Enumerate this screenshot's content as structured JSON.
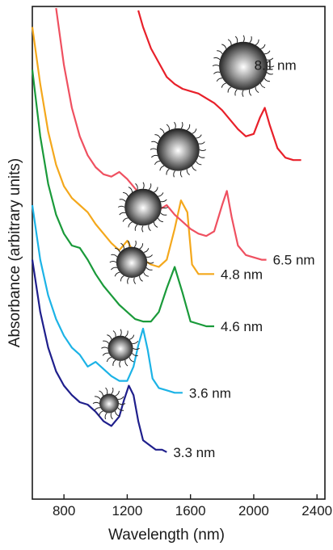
{
  "chart_data": {
    "type": "line",
    "title": "",
    "xlabel": "Wavelength (nm)",
    "ylabel": "Absorbance (arbitrary units)",
    "xlim": [
      600,
      2450
    ],
    "ylim": [
      0,
      1
    ],
    "xticks": [
      800,
      1200,
      1600,
      2000,
      2400
    ],
    "xtick_labels": [
      "800",
      "1200",
      "1600",
      "2000",
      "2400"
    ],
    "yticks_shown": false,
    "grid": false,
    "legend": "none",
    "annotations": "nanoparticle sphere sketches beside each curve; size labels at right end of curves",
    "series": [
      {
        "name": "3.3 nm",
        "color": "#1f1f8c",
        "x": [
          600,
          650,
          700,
          750,
          800,
          850,
          900,
          950,
          1000,
          1050,
          1100,
          1150,
          1180,
          1210,
          1240,
          1270,
          1300,
          1340,
          1380,
          1420,
          1450
        ],
        "y": [
          0.47,
          0.36,
          0.285,
          0.235,
          0.205,
          0.185,
          0.17,
          0.165,
          0.15,
          0.13,
          0.12,
          0.14,
          0.175,
          0.205,
          0.185,
          0.13,
          0.09,
          0.08,
          0.07,
          0.07,
          0.065
        ]
      },
      {
        "name": "3.6 nm",
        "color": "#1cb3e6",
        "x": [
          600,
          650,
          700,
          750,
          800,
          850,
          900,
          950,
          1000,
          1050,
          1100,
          1150,
          1200,
          1240,
          1270,
          1300,
          1330,
          1360,
          1400,
          1450,
          1500,
          1550
        ],
        "y": [
          0.585,
          0.47,
          0.395,
          0.345,
          0.31,
          0.285,
          0.27,
          0.245,
          0.255,
          0.24,
          0.225,
          0.215,
          0.215,
          0.245,
          0.29,
          0.325,
          0.28,
          0.22,
          0.2,
          0.195,
          0.19,
          0.19
        ]
      },
      {
        "name": "4.6 nm",
        "color": "#1a9a3a",
        "x": [
          600,
          650,
          700,
          750,
          800,
          850,
          900,
          950,
          1000,
          1050,
          1100,
          1150,
          1200,
          1250,
          1300,
          1350,
          1400,
          1450,
          1500,
          1550,
          1600,
          1650,
          1700,
          1750
        ],
        "y": [
          0.87,
          0.73,
          0.63,
          0.565,
          0.525,
          0.5,
          0.495,
          0.47,
          0.44,
          0.415,
          0.395,
          0.375,
          0.36,
          0.345,
          0.34,
          0.34,
          0.36,
          0.41,
          0.455,
          0.4,
          0.34,
          0.335,
          0.33,
          0.33
        ]
      },
      {
        "name": "4.8 nm",
        "color": "#f4a81c",
        "x": [
          600,
          650,
          700,
          750,
          800,
          850,
          900,
          950,
          1000,
          1050,
          1100,
          1150,
          1200,
          1250,
          1300,
          1350,
          1400,
          1450,
          1500,
          1540,
          1580,
          1610,
          1650,
          1700,
          1750
        ],
        "y": [
          0.96,
          0.84,
          0.74,
          0.67,
          0.625,
          0.6,
          0.585,
          0.57,
          0.545,
          0.525,
          0.505,
          0.49,
          0.51,
          0.48,
          0.47,
          0.46,
          0.455,
          0.47,
          0.535,
          0.595,
          0.57,
          0.46,
          0.44,
          0.44,
          0.44
        ]
      },
      {
        "name": "6.5 nm",
        "color": "#ef5060",
        "x": [
          750,
          800,
          850,
          900,
          950,
          1000,
          1050,
          1100,
          1150,
          1200,
          1250,
          1300,
          1350,
          1400,
          1450,
          1500,
          1550,
          1600,
          1650,
          1700,
          1750,
          1800,
          1830,
          1860,
          1900,
          1950,
          2000,
          2050,
          2080
        ],
        "y": [
          1.0,
          0.88,
          0.79,
          0.73,
          0.69,
          0.665,
          0.65,
          0.645,
          0.655,
          0.64,
          0.62,
          0.6,
          0.58,
          0.575,
          0.585,
          0.565,
          0.55,
          0.535,
          0.525,
          0.52,
          0.53,
          0.585,
          0.615,
          0.56,
          0.5,
          0.48,
          0.475,
          0.47,
          0.47
        ]
      },
      {
        "name": "8.1 nm",
        "color": "#e8202a",
        "x": [
          1270,
          1300,
          1350,
          1400,
          1450,
          1500,
          1550,
          1600,
          1650,
          1700,
          1750,
          1800,
          1850,
          1900,
          1950,
          2000,
          2040,
          2070,
          2100,
          2150,
          2200,
          2250,
          2300
        ],
        "y": [
          0.995,
          0.96,
          0.915,
          0.885,
          0.855,
          0.84,
          0.83,
          0.825,
          0.82,
          0.81,
          0.8,
          0.785,
          0.765,
          0.745,
          0.73,
          0.735,
          0.77,
          0.79,
          0.755,
          0.705,
          0.685,
          0.68,
          0.68
        ]
      }
    ]
  }
}
